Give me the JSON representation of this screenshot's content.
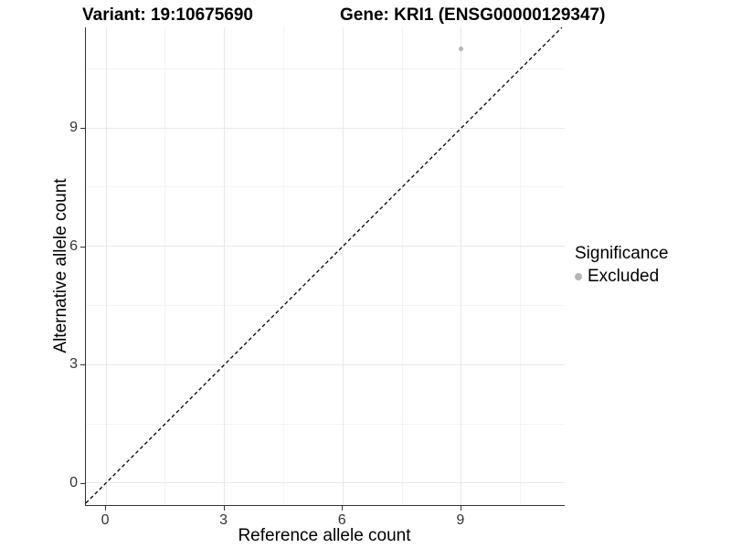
{
  "titles": {
    "variant": "Variant: 19:10675690",
    "gene": "Gene: KRI1 (ENSG00000129347)"
  },
  "legend": {
    "title": "Significance",
    "entries": [
      {
        "label": "Excluded",
        "color": "#b4b4b4"
      }
    ]
  },
  "colors": {
    "point": "#b4b4b4",
    "identity_line": "#000000",
    "axis_line": "#333333",
    "grid_major": "#e9e9e9",
    "grid_minor": "#f4f4f4"
  },
  "chart_data": {
    "type": "scatter",
    "title": "Variant: 19:10675690  |  Gene: KRI1 (ENSG00000129347)",
    "xlabel": "Reference allele count",
    "ylabel": "Alternative allele count",
    "xlim": [
      -0.51,
      11.62
    ],
    "ylim": [
      -0.56,
      11.55
    ],
    "x_breaks": [
      0,
      3,
      6,
      9
    ],
    "y_breaks": [
      0,
      3,
      6,
      9
    ],
    "x_minor_breaks": [
      1.5,
      4.5,
      7.5,
      10.5
    ],
    "y_minor_breaks": [
      1.5,
      4.5,
      7.5,
      10.5
    ],
    "grid": true,
    "legend_position": "right",
    "series": [
      {
        "name": "Excluded",
        "color": "#b4b4b4",
        "points": [
          {
            "x": 9,
            "y": 11
          }
        ]
      }
    ],
    "reference_line": {
      "style": "dashed",
      "slope": 1,
      "intercept": 0,
      "color": "#000000"
    }
  }
}
